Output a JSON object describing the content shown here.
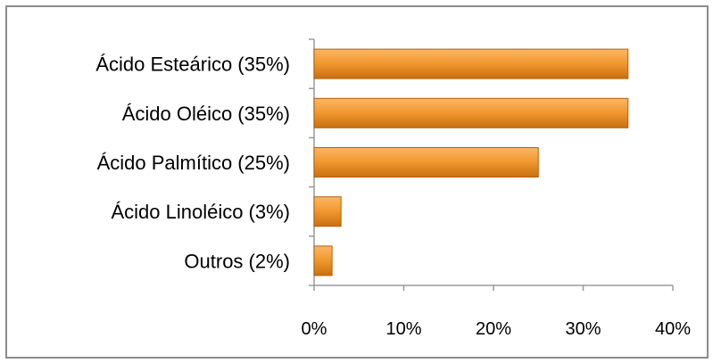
{
  "chart_data": {
    "type": "bar",
    "orientation": "horizontal",
    "categories": [
      "Ácido Esteárico (35%)",
      "Ácido Oléico (35%)",
      "Ácido Palmítico (25%)",
      "Ácido Linoléico (3%)",
      "Outros (2%)"
    ],
    "values": [
      35,
      35,
      25,
      3,
      2
    ],
    "xlim": [
      0,
      40
    ],
    "x_ticks": [
      "0%",
      "10%",
      "20%",
      "30%",
      "40%"
    ],
    "grid": false,
    "legend": "none",
    "colors": {
      "bar_light": "#fbb667",
      "bar_mid": "#f39a32",
      "bar_dark": "#c8700f",
      "bar_stroke": "#b3600a",
      "axis": "#9a9a9a"
    }
  }
}
